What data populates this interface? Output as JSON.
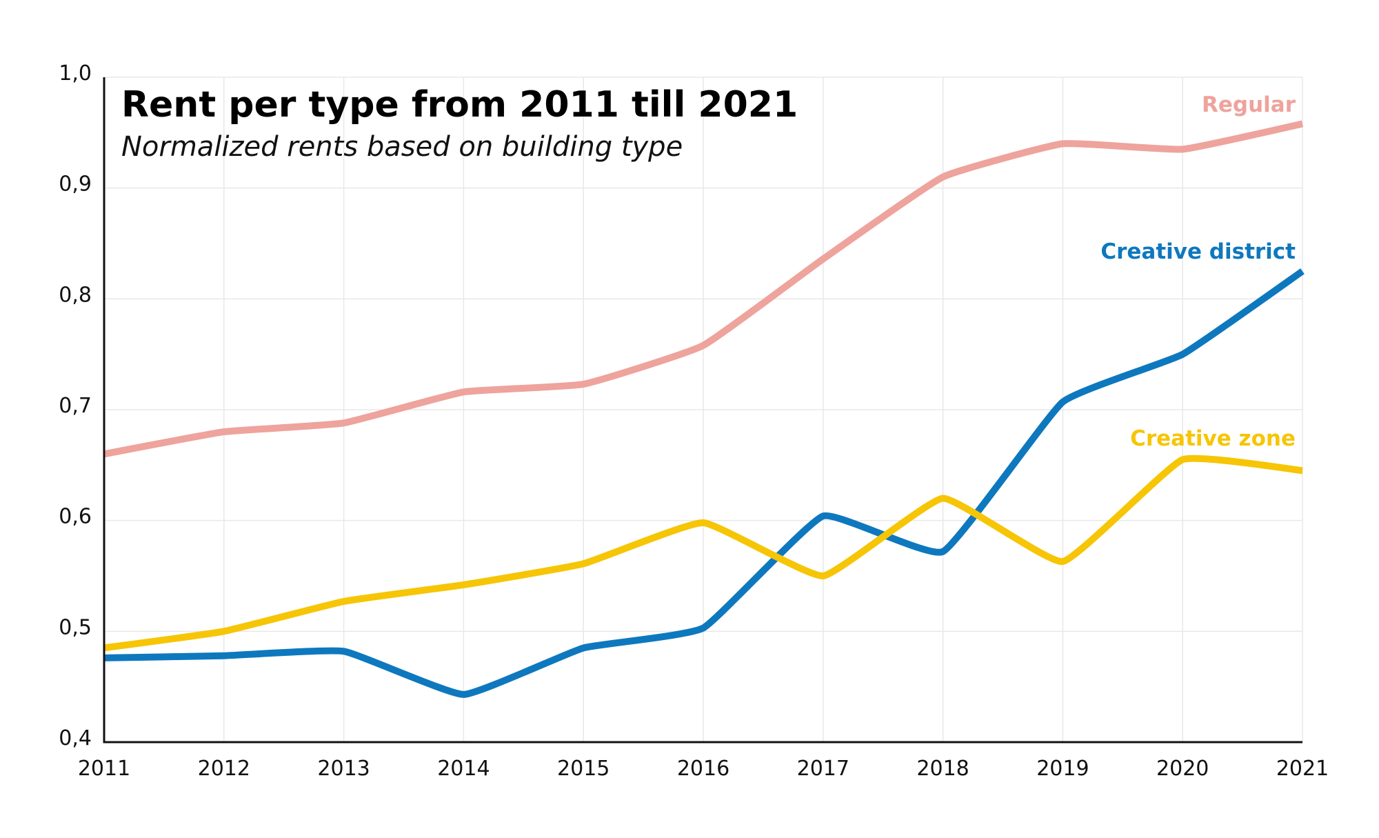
{
  "chart_data": {
    "type": "line",
    "title": "Rent per type from 2011 till 2021",
    "subtitle": "Normalized rents based on building type",
    "xlabel": "",
    "ylabel": "",
    "x": [
      "2011",
      "2012",
      "2013",
      "2014",
      "2015",
      "2016",
      "2017",
      "2018",
      "2019",
      "2020",
      "2021"
    ],
    "ylim": [
      0.4,
      1.0
    ],
    "yticks": [
      0.4,
      0.5,
      0.6,
      0.7,
      0.8,
      0.9,
      1.0
    ],
    "ytick_labels": [
      "0,4",
      "0,5",
      "0,6",
      "0,7",
      "0,8",
      "0,9",
      "1,0"
    ],
    "grid": true,
    "legend": "inline labels at right end of each line",
    "series": [
      {
        "name": "Regular",
        "color": "#EEA39C",
        "values": [
          0.66,
          0.68,
          0.688,
          0.716,
          0.723,
          0.758,
          0.836,
          0.91,
          0.94,
          0.935,
          0.958
        ]
      },
      {
        "name": "Creative district",
        "color": "#0E78BE",
        "values": [
          0.476,
          0.478,
          0.482,
          0.443,
          0.485,
          0.503,
          0.604,
          0.572,
          0.707,
          0.75,
          0.825
        ]
      },
      {
        "name": "Creative zone",
        "color": "#F6C505",
        "values": [
          0.485,
          0.5,
          0.527,
          0.542,
          0.561,
          0.598,
          0.55,
          0.62,
          0.563,
          0.655,
          0.645
        ]
      }
    ]
  }
}
